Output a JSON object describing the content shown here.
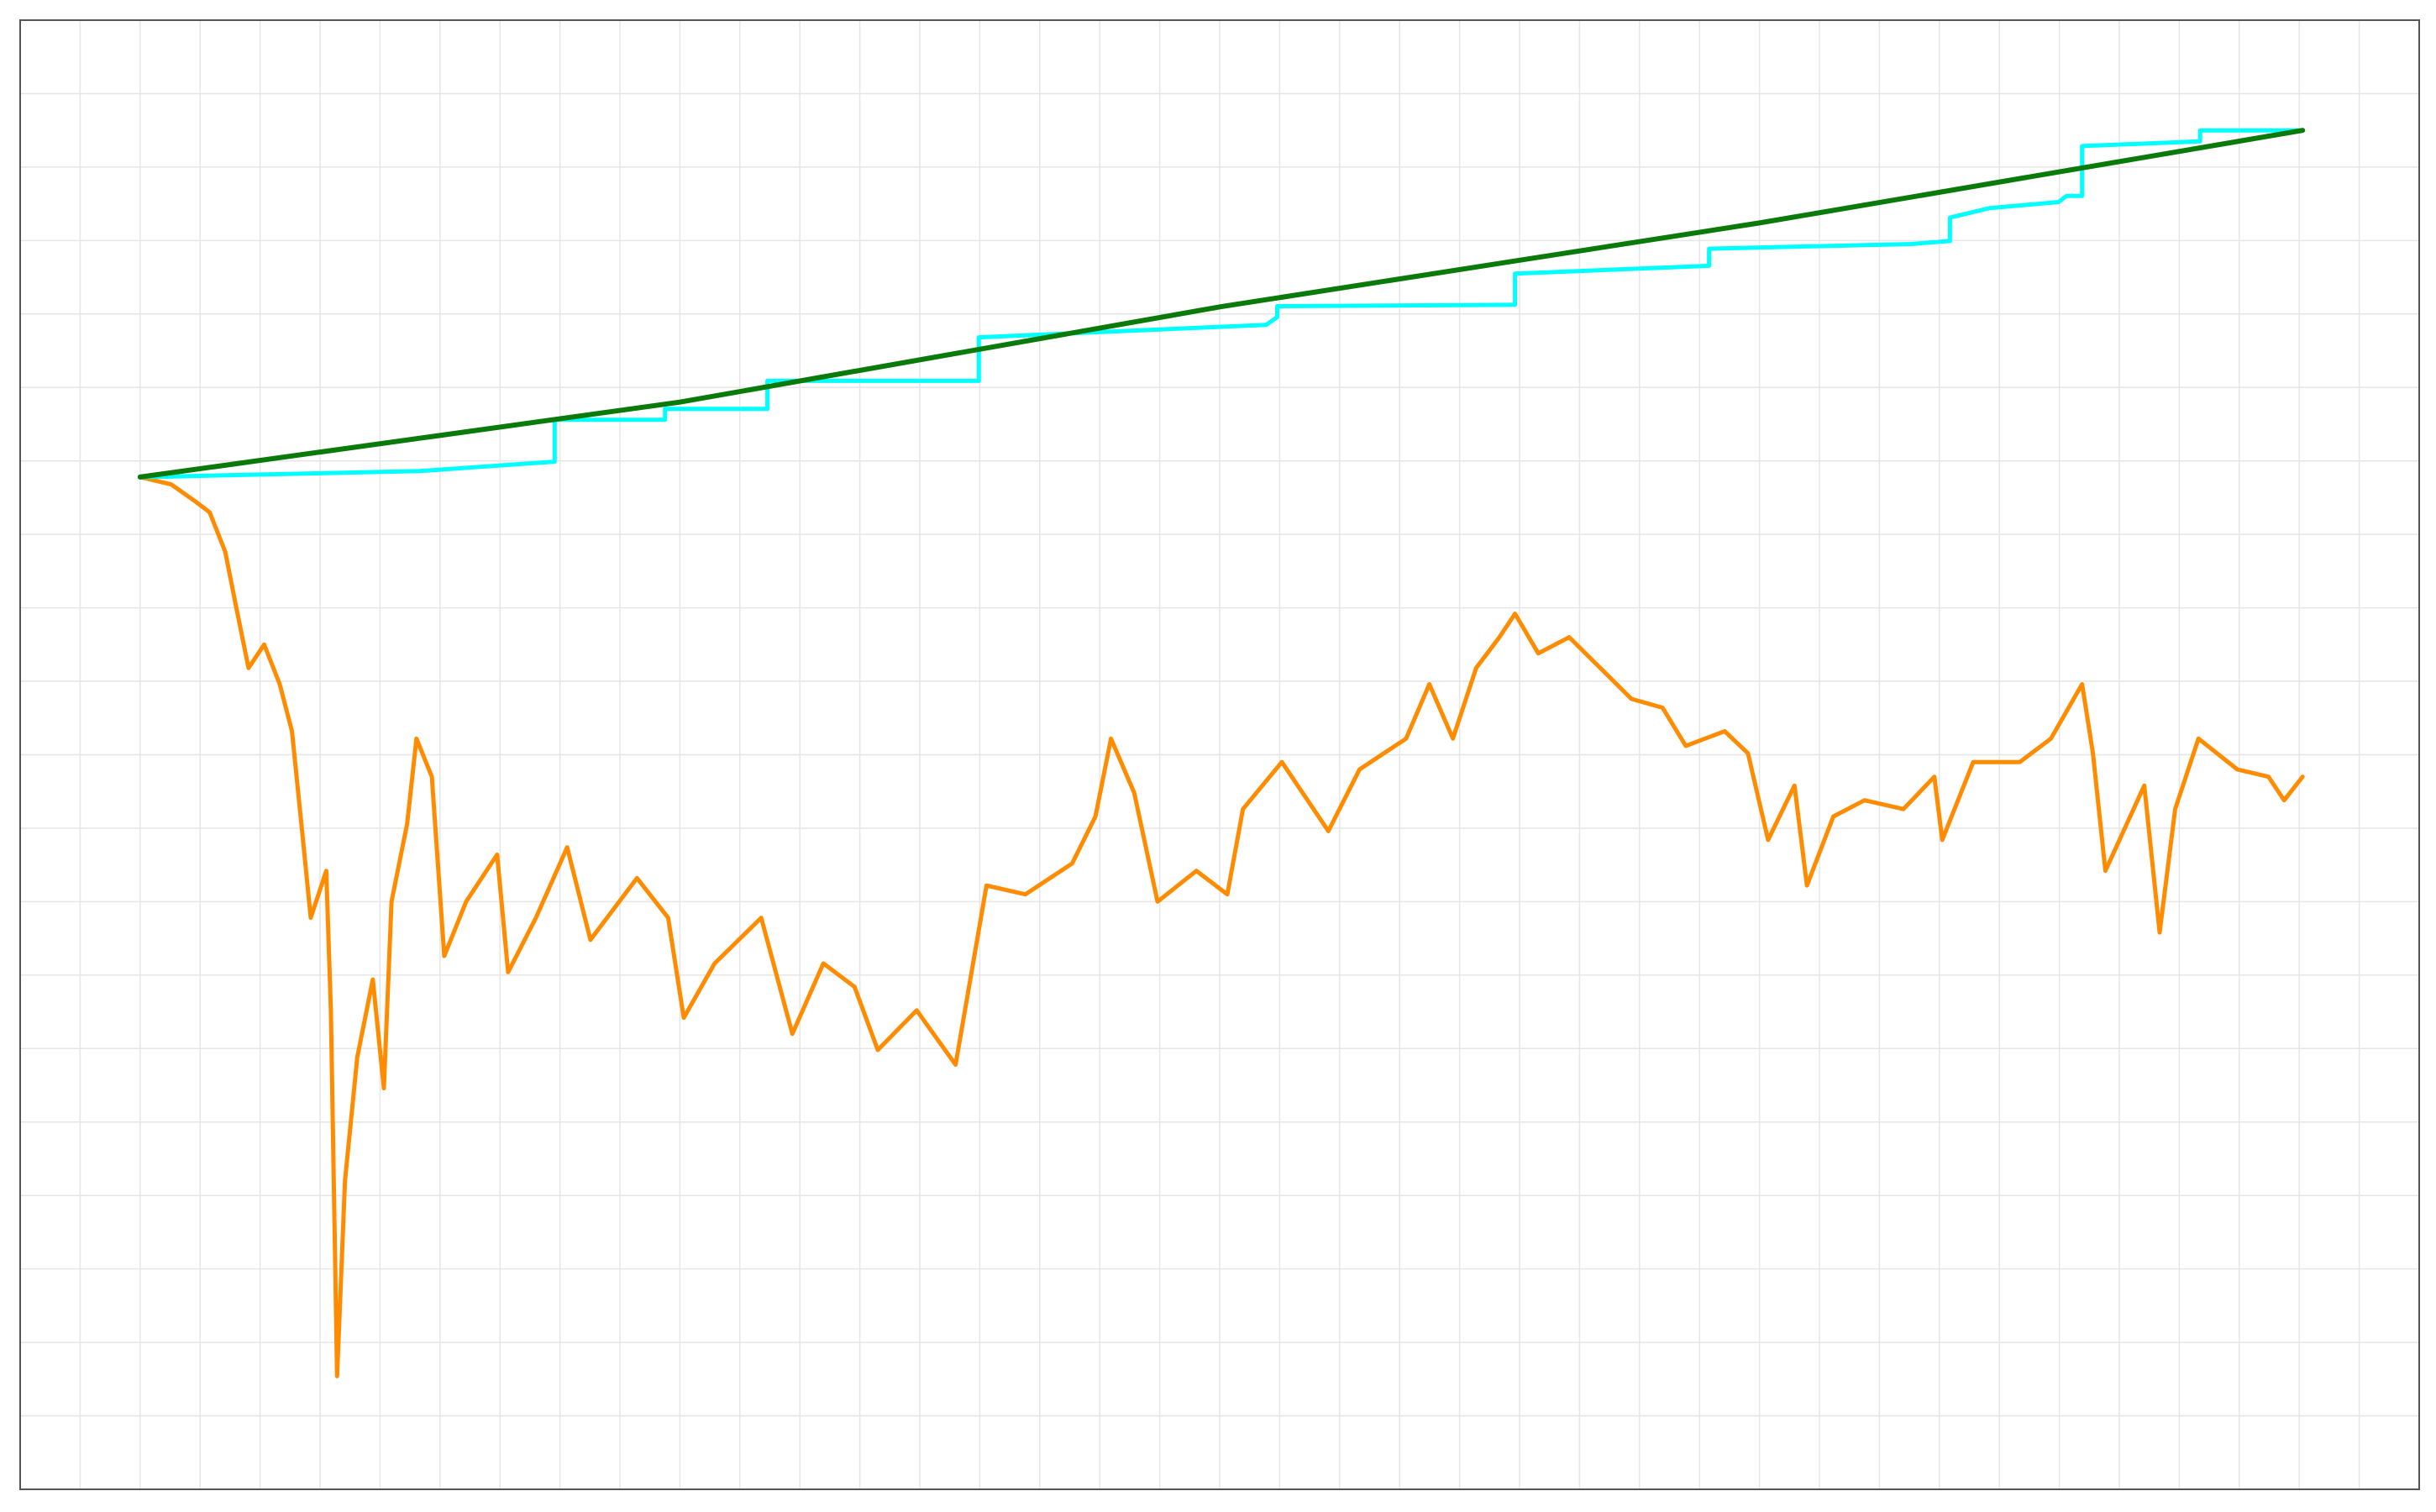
{
  "chart_data": {
    "type": "line",
    "xlim": [
      0,
      100
    ],
    "ylim": [
      0,
      100
    ],
    "grid": true,
    "xticks": [
      0,
      2.5,
      5,
      7.5,
      10,
      12.5,
      15,
      17.5,
      20,
      22.5,
      25,
      27.5,
      30,
      32.5,
      35,
      37.5,
      40,
      42.5,
      45,
      47.5,
      50,
      52.5,
      55,
      57.5,
      60,
      62.5,
      65,
      67.5,
      70,
      72.5,
      75,
      77.5,
      80,
      82.5,
      85,
      87.5,
      90,
      92.5,
      95,
      97.5,
      100
    ],
    "yticks": [
      0,
      5,
      10,
      15,
      20,
      25,
      30,
      35,
      40,
      45,
      50,
      55,
      60,
      65,
      70,
      75,
      80,
      85,
      90,
      95,
      100
    ],
    "series": [
      {
        "color": "#ff8c00",
        "width": 5,
        "x": [
          5.0,
          6.3,
          7.25,
          7.9,
          8.55,
          9.0,
          9.52,
          10.17,
          10.82,
          11.33,
          11.79,
          12.11,
          12.76,
          12.95,
          13.21,
          13.54,
          14.05,
          14.7,
          15.16,
          15.48,
          16.13,
          16.52,
          17.16,
          17.68,
          18.59,
          19.88,
          20.34,
          21.5,
          22.8,
          23.77,
          25.71,
          27.01,
          27.66,
          28.95,
          30.89,
          32.19,
          33.48,
          34.78,
          35.75,
          37.37,
          38.99,
          40.28,
          41.9,
          43.85,
          44.82,
          45.47,
          46.44,
          47.41,
          49.03,
          50.32,
          50.97,
          52.59,
          54.53,
          55.83,
          57.77,
          58.74,
          59.72,
          60.69,
          61.66,
          62.31,
          63.28,
          64.57,
          65.87,
          67.16,
          68.46,
          69.43,
          71.05,
          72.02,
          72.86,
          73.96,
          74.48,
          75.58,
          76.88,
          78.5,
          79.79,
          80.12,
          81.41,
          83.35,
          84.65,
          85.95,
          86.4,
          86.92,
          88.54,
          89.18,
          89.83,
          90.8,
          92.42,
          93.72,
          94.37,
          95.14
        ],
        "values": [
          68.9,
          68.4,
          67.3,
          66.5,
          63.8,
          60.1,
          55.9,
          57.5,
          54.8,
          51.6,
          44.2,
          38.9,
          42.1,
          32.6,
          7.7,
          21.0,
          29.4,
          34.7,
          27.3,
          40.0,
          45.3,
          51.1,
          48.5,
          36.3,
          40.0,
          43.2,
          35.2,
          38.9,
          43.7,
          37.4,
          41.6,
          38.9,
          32.1,
          35.8,
          38.9,
          31.0,
          35.8,
          34.2,
          29.9,
          32.6,
          28.9,
          41.1,
          40.5,
          42.6,
          45.8,
          51.1,
          47.4,
          40.0,
          42.1,
          40.5,
          46.3,
          49.5,
          44.8,
          49.0,
          51.1,
          54.8,
          51.1,
          55.9,
          58.0,
          59.6,
          56.9,
          58.0,
          55.9,
          53.8,
          53.2,
          50.6,
          51.6,
          50.1,
          44.2,
          47.9,
          41.1,
          45.8,
          46.9,
          46.3,
          48.5,
          44.2,
          49.5,
          49.5,
          51.1,
          54.8,
          50.1,
          42.1,
          47.9,
          37.9,
          46.3,
          51.1,
          49.0,
          48.5,
          46.9,
          48.5
        ]
      },
      {
        "color": "#00ffff",
        "width": 5,
        "x": [
          5.0,
          16.65,
          22.28,
          22.28,
          26.88,
          26.88,
          31.15,
          31.15,
          39.96,
          39.96,
          51.94,
          52.4,
          52.4,
          62.31,
          62.31,
          70.4,
          70.4,
          78.82,
          80.44,
          80.44,
          82.06,
          84.97,
          85.3,
          85.95,
          85.95,
          90.87,
          90.87,
          95.14
        ],
        "values": [
          68.89,
          69.31,
          69.95,
          72.8,
          72.8,
          73.54,
          73.54,
          75.45,
          75.45,
          78.41,
          79.26,
          79.79,
          80.53,
          80.63,
          82.75,
          83.28,
          84.44,
          84.76,
          84.97,
          86.56,
          87.2,
          87.62,
          88.04,
          88.04,
          91.43,
          91.75,
          92.49,
          92.49
        ]
      },
      {
        "color": "#0a7a0a",
        "width": 6,
        "x": [
          5.0,
          27.5,
          50.06,
          72.5,
          95.14
        ],
        "values": [
          68.9,
          74.0,
          80.5,
          86.2,
          92.5
        ]
      }
    ]
  }
}
